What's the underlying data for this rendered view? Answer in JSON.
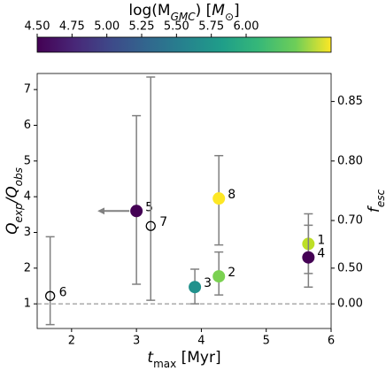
{
  "chart_data": {
    "type": "scatter",
    "colorbar": {
      "label": [
        "log(M",
        "GMC",
        ") [",
        "M",
        "⊙",
        "]"
      ],
      "lim": [
        4.5,
        6.61
      ],
      "ticks": [
        {
          "value": 4.5,
          "label": "4.50"
        },
        {
          "value": 4.75,
          "label": "4.75"
        },
        {
          "value": 5.0,
          "label": "5.00"
        },
        {
          "value": 5.25,
          "label": "5.25"
        },
        {
          "value": 5.5,
          "label": "5.50"
        },
        {
          "value": 5.75,
          "label": "5.75"
        },
        {
          "value": 6.0,
          "label": "6.00"
        }
      ]
    },
    "xlabel": [
      "t",
      "max",
      " [Myr]"
    ],
    "ylabel": [
      "Q",
      "exp",
      "/Q",
      "obs"
    ],
    "y2label": [
      "f",
      "esc"
    ],
    "labels": [
      "1",
      "2",
      "3",
      "4",
      "5",
      "6",
      "7",
      "8"
    ],
    "x": [
      5.65,
      4.27,
      3.9,
      5.65,
      3.0,
      1.67,
      3.22,
      4.27
    ],
    "values": [
      2.68,
      1.77,
      1.47,
      2.3,
      3.6,
      1.22,
      3.18,
      3.95
    ],
    "lower": [
      1.85,
      1.25,
      1.0,
      1.47,
      1.55,
      0.42,
      1.1,
      2.65
    ],
    "upper": [
      3.52,
      2.45,
      1.97,
      3.2,
      6.27,
      2.88,
      7.35,
      5.15
    ],
    "colors": [
      "#bddf26",
      "#7ad151",
      "#21918c",
      "#440154",
      "#440154",
      null,
      null,
      "#fde725"
    ],
    "x_upper_limits": [
      false,
      false,
      false,
      false,
      true,
      false,
      false,
      false
    ],
    "hline": 1,
    "xlim": [
      1.47,
      6.0
    ],
    "xticks": [
      2,
      3,
      4,
      5,
      6
    ],
    "ylim": [
      0.31,
      7.45
    ],
    "yticks": [
      1,
      2,
      3,
      4,
      5,
      6,
      7
    ],
    "y2_scale": "one_minus_inverse",
    "y2lim": [
      -2.23,
      0.866
    ],
    "y2ticks": [
      {
        "value": 0,
        "label": "0.00"
      },
      {
        "value": 0.5,
        "label": "0.50"
      },
      {
        "value": 0.7,
        "label": "0.70"
      },
      {
        "value": 0.8,
        "label": "0.80"
      },
      {
        "value": 0.85,
        "label": "0.85"
      }
    ]
  }
}
